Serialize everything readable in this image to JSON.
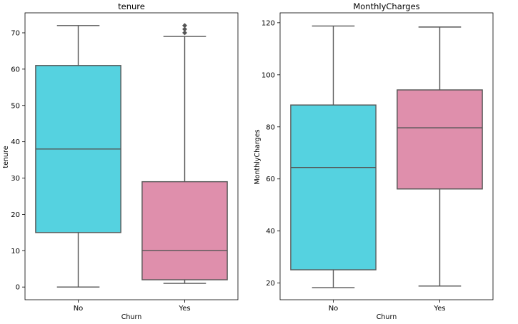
{
  "chart_data": [
    {
      "type": "box",
      "title": "tenure",
      "xlabel": "Churn",
      "ylabel": "tenure",
      "categories": [
        "No",
        "Yes"
      ],
      "ylim": [
        -3.5,
        75.5
      ],
      "yticks": [
        0,
        10,
        20,
        30,
        40,
        50,
        60,
        70
      ],
      "grid": false,
      "boxes": [
        {
          "category": "No",
          "color": "#55d2e0",
          "whisker_low": 0,
          "q1": 15,
          "median": 38,
          "q3": 61,
          "whisker_high": 72,
          "outliers": []
        },
        {
          "category": "Yes",
          "color": "#df8fac",
          "whisker_low": 1,
          "q1": 2,
          "median": 10,
          "q3": 29,
          "whisker_high": 69,
          "outliers": [
            70,
            71,
            72
          ]
        }
      ]
    },
    {
      "type": "box",
      "title": "MonthlyCharges",
      "xlabel": "Churn",
      "ylabel": "MonthlyCharges",
      "categories": [
        "No",
        "Yes"
      ],
      "ylim": [
        13.6,
        123.8
      ],
      "yticks": [
        20,
        40,
        60,
        80,
        100,
        120
      ],
      "grid": false,
      "boxes": [
        {
          "category": "No",
          "color": "#55d2e0",
          "whisker_low": 18.25,
          "q1": 25.1,
          "median": 64.4,
          "q3": 88.4,
          "whisker_high": 118.75,
          "outliers": []
        },
        {
          "category": "Yes",
          "color": "#df8fac",
          "whisker_low": 18.85,
          "q1": 56.15,
          "median": 79.65,
          "q3": 94.2,
          "whisker_high": 118.35,
          "outliers": []
        }
      ]
    }
  ]
}
